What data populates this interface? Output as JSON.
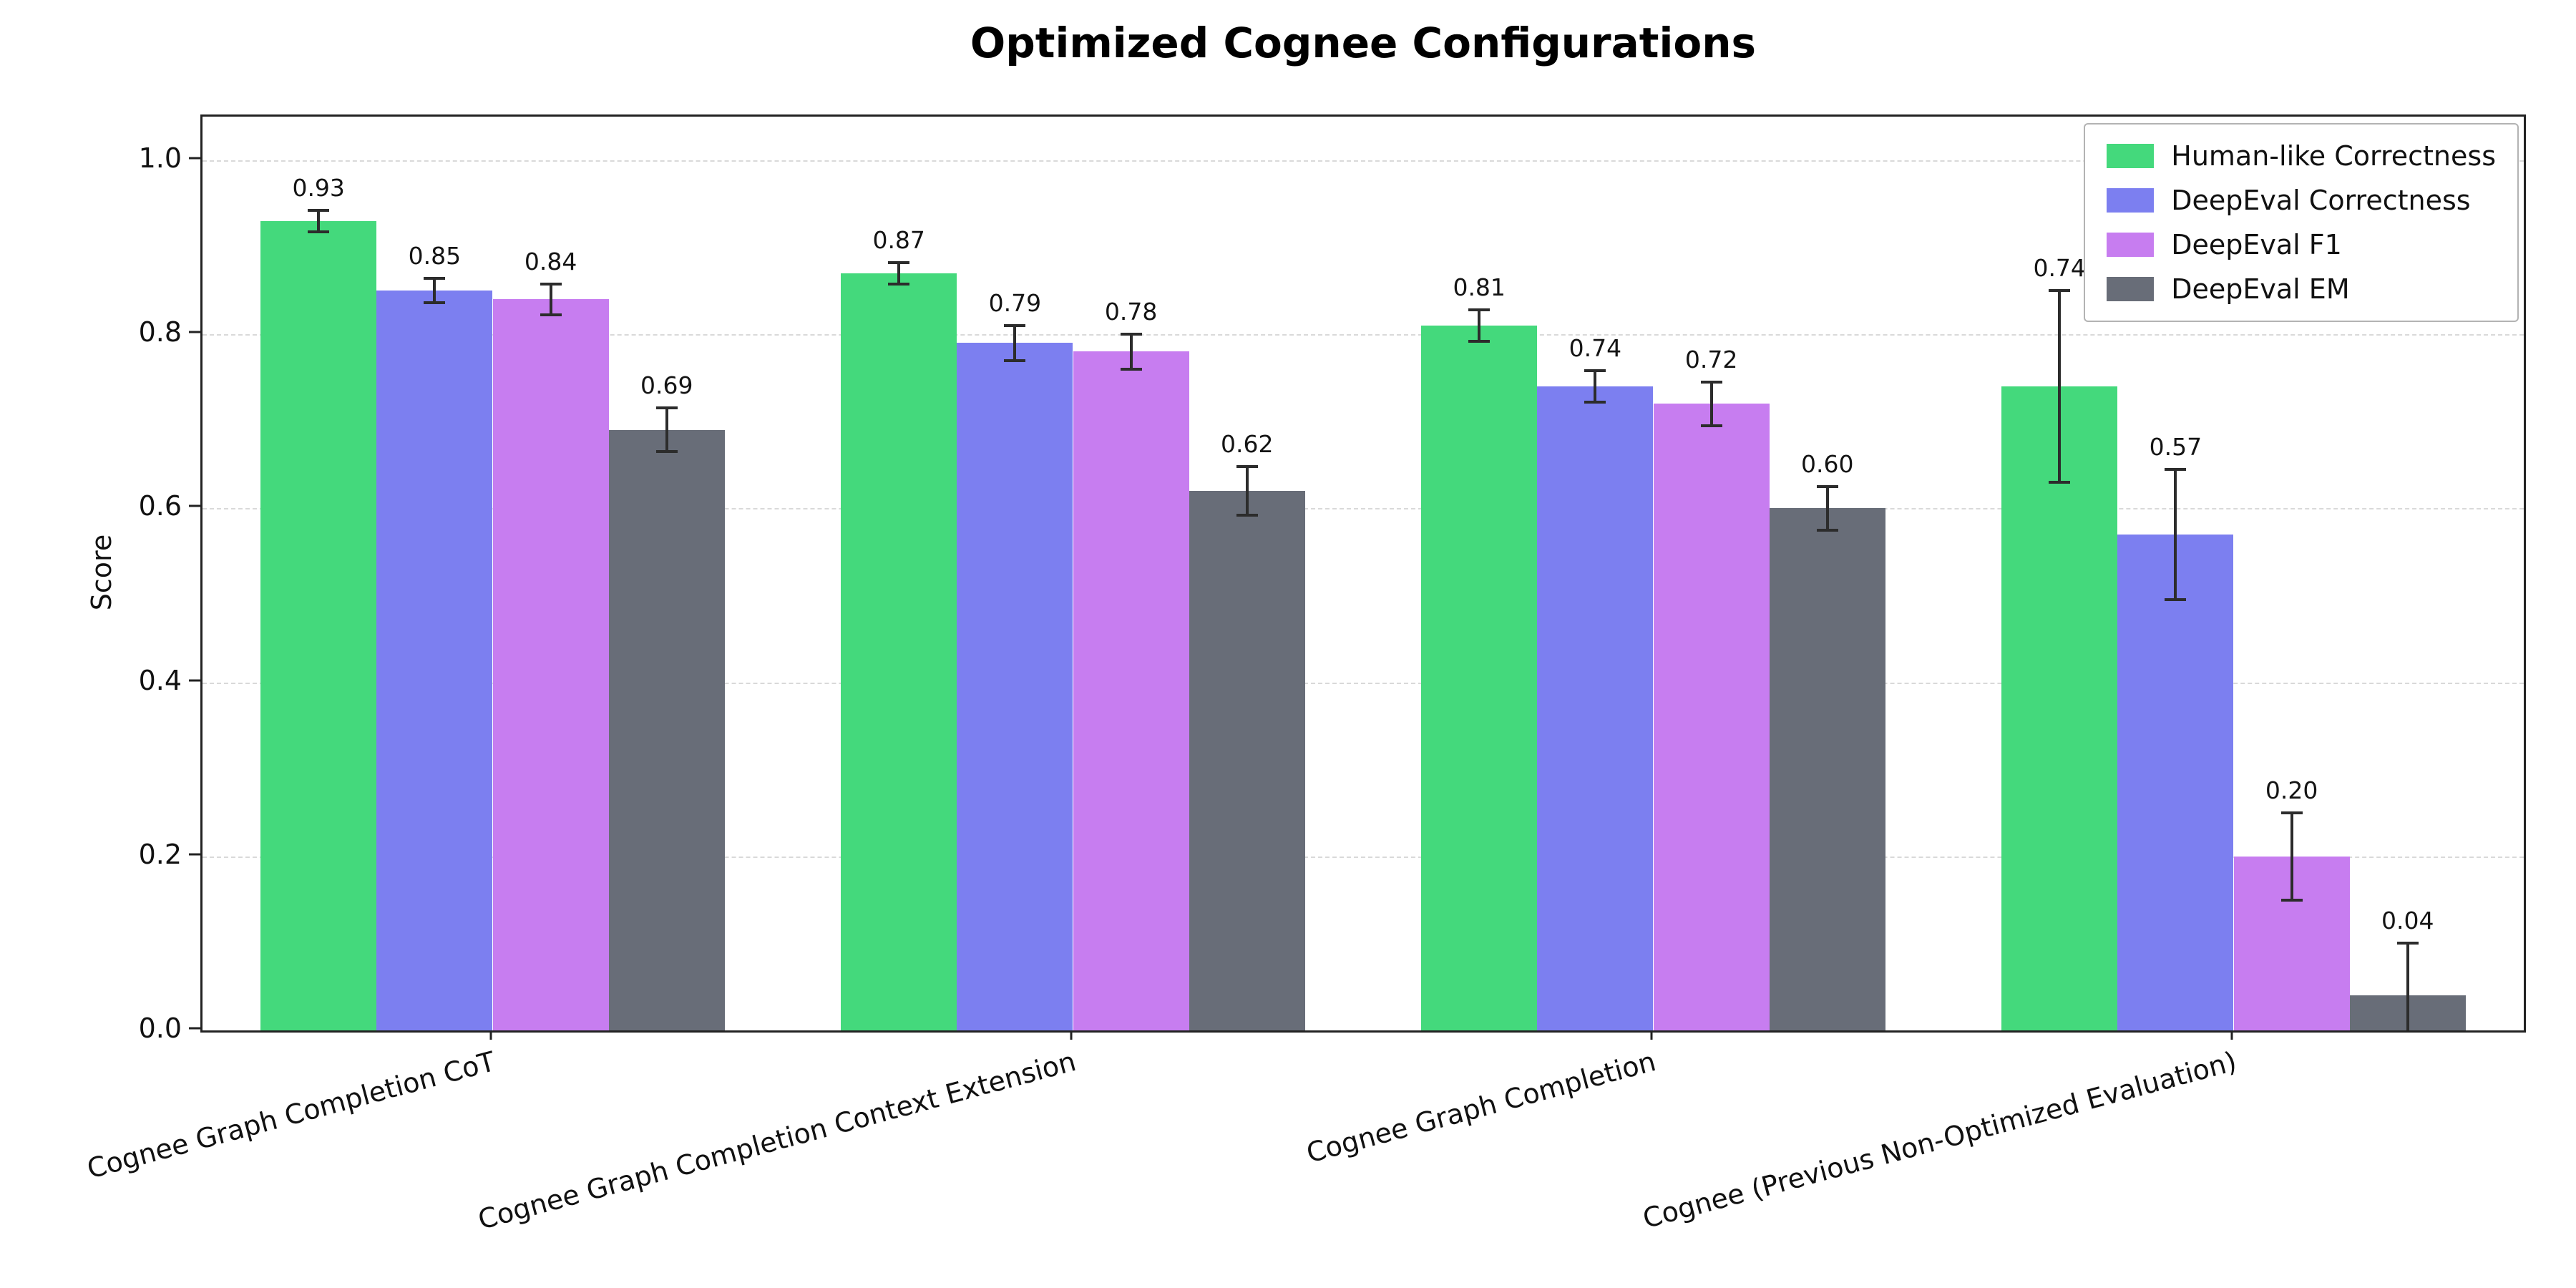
{
  "title": "Optimized Cognee Configurations",
  "chart_data": {
    "type": "bar",
    "title": "Optimized Cognee Configurations",
    "xlabel": "",
    "ylabel": "Score",
    "ylim": [
      0,
      1.05
    ],
    "yticks": [
      0.0,
      0.2,
      0.4,
      0.6,
      0.8,
      1.0
    ],
    "grid": "horizontal-dashed",
    "legend_position": "upper right",
    "error_bar_color": "#2c2c2c",
    "categories": [
      "Cognee Graph Completion CoT",
      "Cognee Graph Completion Context Extension",
      "Cognee Graph Completion",
      "Cognee (Previous Non-Optimized Evaluation)"
    ],
    "series": [
      {
        "name": "Human-like Correctness",
        "color": "#44d97c",
        "values": [
          0.93,
          0.87,
          0.81,
          0.74
        ],
        "errors": [
          0.012,
          0.012,
          0.018,
          0.11
        ]
      },
      {
        "name": "DeepEval Correctness",
        "color": "#7c7ff0",
        "values": [
          0.85,
          0.79,
          0.74,
          0.57
        ],
        "errors": [
          0.014,
          0.02,
          0.018,
          0.075
        ]
      },
      {
        "name": "DeepEval F1",
        "color": "#c77df0",
        "values": [
          0.84,
          0.78,
          0.72,
          0.2
        ],
        "errors": [
          0.018,
          0.02,
          0.025,
          0.05
        ]
      },
      {
        "name": "DeepEval EM",
        "color": "#686d78",
        "values": [
          0.69,
          0.62,
          0.6,
          0.04
        ],
        "errors": [
          0.025,
          0.028,
          0.025,
          0.06
        ]
      }
    ]
  }
}
